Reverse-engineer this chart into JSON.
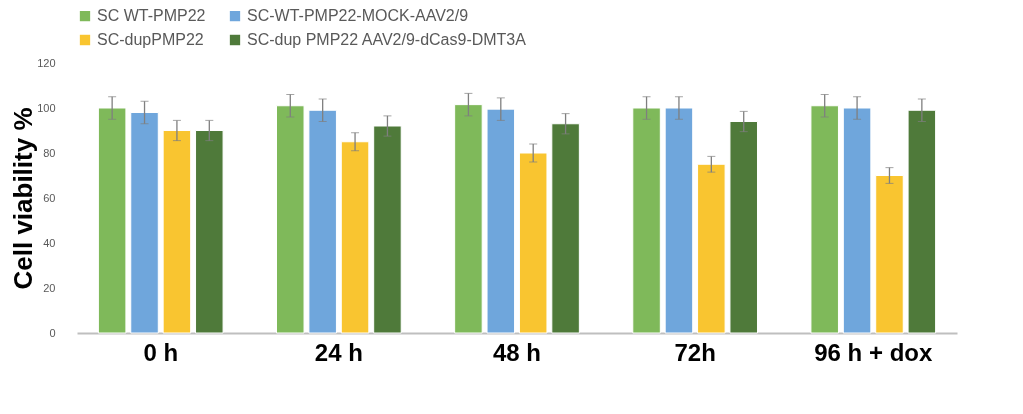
{
  "chart_data": {
    "type": "bar",
    "ylabel": "Cell viability %",
    "categories": [
      "0 h",
      "24 h",
      "48 h",
      "72h",
      "96 h + dox"
    ],
    "series": [
      {
        "name": "SC WT-PMP22",
        "color": "#7fb95a",
        "values": [
          100,
          101,
          101.5,
          100,
          101
        ],
        "errors": [
          5,
          5,
          5,
          5,
          5
        ]
      },
      {
        "name": "SC-WT-PMP22-MOCK-AAV2/9",
        "color": "#6fa6dc",
        "values": [
          98,
          99,
          99.5,
          100,
          100
        ],
        "errors": [
          5,
          5,
          5,
          5,
          5
        ]
      },
      {
        "name": "SC-dupPMP22",
        "color": "#f9c530",
        "values": [
          90,
          85,
          80,
          75,
          70
        ],
        "errors": [
          4.5,
          4,
          4,
          3.5,
          3.5
        ]
      },
      {
        "name": "SC-dup PMP22 AAV2/9-dCas9-DMT3A",
        "color": "#4f7a3a",
        "values": [
          90,
          92,
          93,
          94,
          99
        ],
        "errors": [
          4.5,
          4.5,
          4.5,
          4.5,
          5
        ]
      }
    ],
    "ylim": [
      0,
      120
    ],
    "yticks": [
      0,
      20,
      40,
      60,
      80,
      100,
      120
    ],
    "grid": false,
    "legend": "top"
  }
}
